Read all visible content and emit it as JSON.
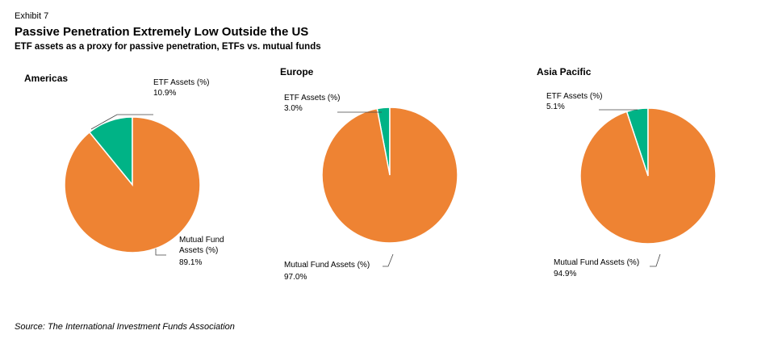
{
  "header": {
    "exhibit": "Exhibit 7",
    "title": "Passive Penetration Extremely Low Outside the US",
    "subtitle": "ETF assets as a proxy for passive penetration, ETFs vs. mutual funds"
  },
  "footer": {
    "source": "Source: The International Investment Funds Association"
  },
  "colors": {
    "etf": "#00b386",
    "mutual_fund": "#ee8333"
  },
  "chart_data": [
    {
      "type": "pie",
      "title": "Americas",
      "slices": [
        {
          "label": "ETF Assets (%)",
          "value": 10.9,
          "value_label": "10.9%"
        },
        {
          "label": "Mutual Fund Assets (%)",
          "value": 89.1,
          "value_label": "89.1%"
        }
      ]
    },
    {
      "type": "pie",
      "title": "Europe",
      "slices": [
        {
          "label": "ETF Assets (%)",
          "value": 3.0,
          "value_label": "3.0%"
        },
        {
          "label": "Mutual Fund Assets (%)",
          "value": 97.0,
          "value_label": "97.0%"
        }
      ]
    },
    {
      "type": "pie",
      "title": "Asia Pacific",
      "slices": [
        {
          "label": "ETF Assets (%)",
          "value": 5.1,
          "value_label": "5.1%"
        },
        {
          "label": "Mutual Fund Assets (%)",
          "value": 94.9,
          "value_label": "94.9%"
        }
      ]
    }
  ]
}
